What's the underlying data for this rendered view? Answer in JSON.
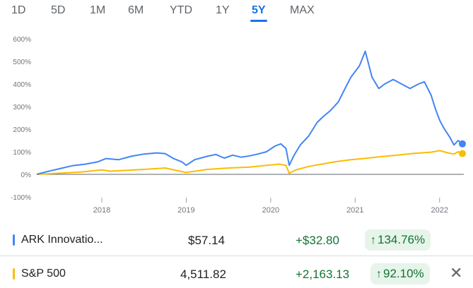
{
  "tabs": [
    "1D",
    "5D",
    "1M",
    "6M",
    "YTD",
    "1Y",
    "5Y",
    "MAX"
  ],
  "active_tab": "5Y",
  "colors": {
    "accent": "#1a73e8",
    "ark": "#4285f4",
    "sp500": "#fbbc04",
    "positive": "#137333",
    "badge_bg": "#e6f4ea"
  },
  "chart_data": {
    "type": "line",
    "title": "",
    "xlabel": "",
    "ylabel": "",
    "ylim": [
      -100,
      600
    ],
    "y_ticks": [
      "600%",
      "500%",
      "400%",
      "300%",
      "200%",
      "100%",
      "0%",
      "-100%"
    ],
    "x_ticks": [
      "2018",
      "2019",
      "2020",
      "2021",
      "2022"
    ],
    "x_range": [
      2017.23,
      2022.27
    ],
    "grid": false,
    "series": [
      {
        "name": "ARK Innovatio...",
        "color": "#4285f4",
        "points": [
          [
            2017.23,
            0
          ],
          [
            2017.35,
            12
          ],
          [
            2017.5,
            25
          ],
          [
            2017.65,
            38
          ],
          [
            2017.8,
            45
          ],
          [
            2017.95,
            55
          ],
          [
            2018.05,
            70
          ],
          [
            2018.2,
            65
          ],
          [
            2018.35,
            80
          ],
          [
            2018.5,
            90
          ],
          [
            2018.65,
            95
          ],
          [
            2018.75,
            92
          ],
          [
            2018.85,
            70
          ],
          [
            2018.95,
            55
          ],
          [
            2019.0,
            40
          ],
          [
            2019.1,
            65
          ],
          [
            2019.25,
            80
          ],
          [
            2019.35,
            88
          ],
          [
            2019.45,
            72
          ],
          [
            2019.55,
            85
          ],
          [
            2019.65,
            76
          ],
          [
            2019.75,
            82
          ],
          [
            2019.85,
            90
          ],
          [
            2019.95,
            100
          ],
          [
            2020.05,
            125
          ],
          [
            2020.12,
            135
          ],
          [
            2020.18,
            115
          ],
          [
            2020.22,
            40
          ],
          [
            2020.27,
            80
          ],
          [
            2020.35,
            130
          ],
          [
            2020.45,
            170
          ],
          [
            2020.55,
            230
          ],
          [
            2020.62,
            255
          ],
          [
            2020.7,
            280
          ],
          [
            2020.8,
            320
          ],
          [
            2020.88,
            380
          ],
          [
            2020.95,
            430
          ],
          [
            2021.05,
            480
          ],
          [
            2021.12,
            545
          ],
          [
            2021.2,
            430
          ],
          [
            2021.28,
            380
          ],
          [
            2021.35,
            400
          ],
          [
            2021.45,
            420
          ],
          [
            2021.55,
            400
          ],
          [
            2021.65,
            380
          ],
          [
            2021.75,
            400
          ],
          [
            2021.82,
            410
          ],
          [
            2021.9,
            350
          ],
          [
            2021.95,
            290
          ],
          [
            2022.0,
            240
          ],
          [
            2022.05,
            205
          ],
          [
            2022.12,
            165
          ],
          [
            2022.17,
            130
          ],
          [
            2022.22,
            150
          ],
          [
            2022.27,
            135
          ]
        ]
      },
      {
        "name": "S&P 500",
        "color": "#fbbc04",
        "points": [
          [
            2017.23,
            0
          ],
          [
            2017.5,
            5
          ],
          [
            2017.75,
            10
          ],
          [
            2018.0,
            20
          ],
          [
            2018.1,
            14
          ],
          [
            2018.5,
            22
          ],
          [
            2018.75,
            28
          ],
          [
            2018.95,
            12
          ],
          [
            2019.0,
            8
          ],
          [
            2019.25,
            22
          ],
          [
            2019.5,
            28
          ],
          [
            2019.75,
            32
          ],
          [
            2019.95,
            40
          ],
          [
            2020.1,
            45
          ],
          [
            2020.18,
            40
          ],
          [
            2020.22,
            5
          ],
          [
            2020.3,
            20
          ],
          [
            2020.45,
            35
          ],
          [
            2020.6,
            45
          ],
          [
            2020.75,
            55
          ],
          [
            2020.95,
            65
          ],
          [
            2021.1,
            70
          ],
          [
            2021.3,
            78
          ],
          [
            2021.5,
            85
          ],
          [
            2021.7,
            93
          ],
          [
            2021.9,
            98
          ],
          [
            2022.0,
            105
          ],
          [
            2022.1,
            95
          ],
          [
            2022.17,
            90
          ],
          [
            2022.22,
            100
          ],
          [
            2022.27,
            92
          ]
        ]
      }
    ]
  },
  "legend": [
    {
      "name": "ARK Innovatio...",
      "price": "$57.14",
      "change": "+$32.80",
      "arrow": "↑",
      "pct": "134.76%",
      "color": "#4285f4"
    },
    {
      "name": "S&P 500",
      "price": "4,511.82",
      "change": "+2,163.13",
      "arrow": "↑",
      "pct": "92.10%",
      "color": "#fbbc04",
      "close": "✕"
    }
  ]
}
